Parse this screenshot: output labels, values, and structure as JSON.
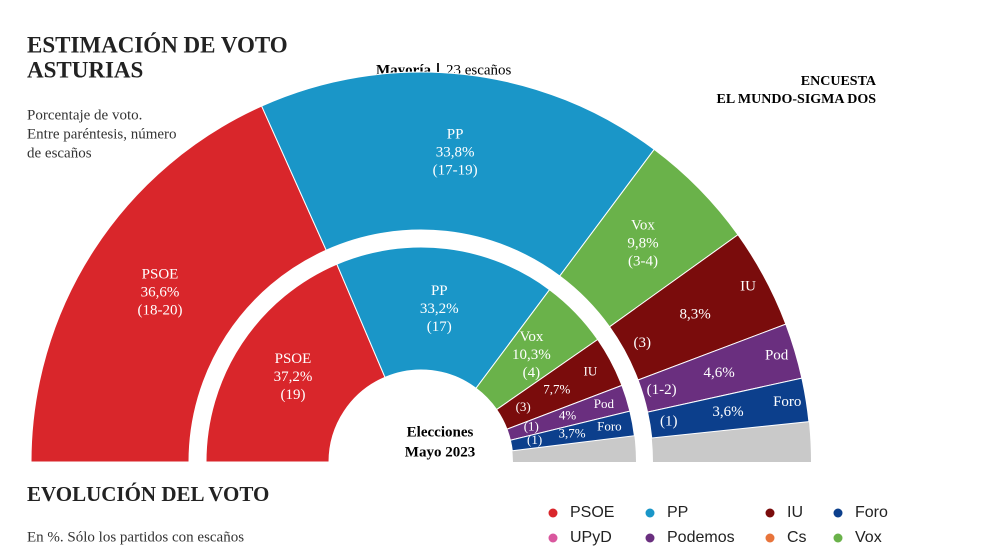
{
  "chart_data": {
    "type": "semicircle",
    "title": [
      "ESTIMACIÓN DE VOTO",
      "ASTURIAS"
    ],
    "subtitle": [
      "Porcentaje de voto.",
      "Entre paréntesis, número",
      "de escaños"
    ],
    "majority_label": "Mayoría",
    "majority_seats": "23 escaños",
    "source": [
      "ENCUESTA",
      "EL MUNDO-SIGMA DOS"
    ],
    "inner_label": [
      "Elecciones",
      "Mayo 2023"
    ],
    "outer": [
      {
        "name": "PSOE",
        "value": 36.6,
        "value_label": "36,6%",
        "seats": "(18-20)",
        "color": "#d9262b"
      },
      {
        "name": "PP",
        "value": 33.8,
        "value_label": "33,8%",
        "seats": "(17-19)",
        "color": "#1a96c8"
      },
      {
        "name": "Vox",
        "value": 9.8,
        "value_label": "9,8%",
        "seats": "(3-4)",
        "color": "#6ab24a"
      },
      {
        "name": "IU",
        "value": 8.3,
        "value_label": "8,3%",
        "seats": "(3)",
        "color": "#7a0c0c"
      },
      {
        "name": "Pod",
        "value": 4.6,
        "value_label": "4,6%",
        "seats": "(1-2)",
        "color": "#6a2f7f"
      },
      {
        "name": "Foro",
        "value": 3.6,
        "value_label": "3,6%",
        "seats": "(1)",
        "color": "#0c3f8c"
      }
    ],
    "inner": [
      {
        "name": "PSOE",
        "value": 37.2,
        "value_label": "37,2%",
        "seats": "(19)",
        "color": "#d9262b"
      },
      {
        "name": "PP",
        "value": 33.2,
        "value_label": "33,2%",
        "seats": "(17)",
        "color": "#1a96c8"
      },
      {
        "name": "Vox",
        "value": 10.3,
        "value_label": "10,3%",
        "seats": "(4)",
        "color": "#6ab24a"
      },
      {
        "name": "IU",
        "value": 7.7,
        "value_label": "7,7%",
        "seats": "(3)",
        "color": "#7a0c0c"
      },
      {
        "name": "Pod",
        "value": 4,
        "value_label": "4%",
        "seats": "(1)",
        "color": "#6a2f7f"
      },
      {
        "name": "Foro",
        "value": 3.7,
        "value_label": "3,7%",
        "seats": "(1)",
        "color": "#0c3f8c"
      }
    ],
    "section_title": "EVOLUCIÓN DEL VOTO",
    "section_subtitle": "En %. Sólo los partidos con escaños",
    "legend": [
      {
        "name": "PSOE",
        "color": "#d9262b"
      },
      {
        "name": "PP",
        "color": "#1a96c8"
      },
      {
        "name": "IU",
        "color": "#7a0c0c"
      },
      {
        "name": "Foro",
        "color": "#0c3f8c"
      },
      {
        "name": "UPyD",
        "color": "#d9579e"
      },
      {
        "name": "Podemos",
        "color": "#6a2f7f"
      },
      {
        "name": "Cs",
        "color": "#e8743b"
      },
      {
        "name": "Vox",
        "color": "#6ab24a"
      }
    ]
  }
}
